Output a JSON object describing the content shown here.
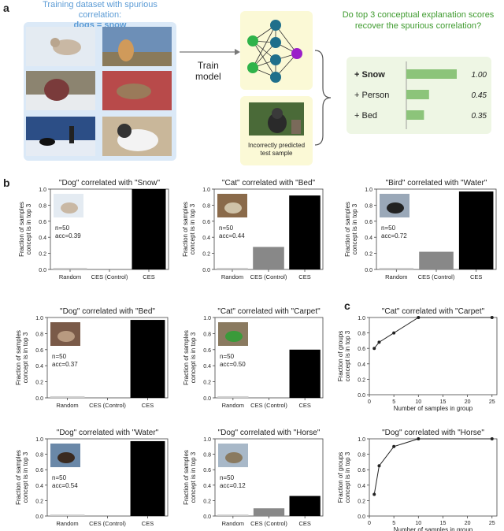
{
  "panel_a": {
    "letter": "a",
    "dataset_title": "Training dataset with spurious correlation:",
    "dataset_highlight": "dogs = snow",
    "train_label_line1": "Train",
    "train_label_line2": "model",
    "test_caption_line1": "Incorrectly predicted",
    "test_caption_line2": "test sample",
    "question_line1": "Do top 3 conceptual explanation scores",
    "question_line2": "recover the spurious correlation?",
    "scores": [
      {
        "label": "+ Snow",
        "value": 1.0,
        "text": "1.00",
        "bold": true
      },
      {
        "label": "+ Person",
        "value": 0.45,
        "text": "0.45",
        "bold": false
      },
      {
        "label": "+ Bed",
        "value": 0.35,
        "text": "0.35",
        "bold": false
      }
    ],
    "colors": {
      "dataset_bg": "#dbe9f7",
      "dataset_title": "#5b9bd5",
      "green_bg": "#eef6e4",
      "bar": "#8cc47a",
      "question": "#3f9b2f",
      "node_teal": "#1f6f8b",
      "node_green": "#2fb34a",
      "node_purple": "#9b1fc9"
    }
  },
  "panel_b": {
    "letter": "b"
  },
  "panel_c": {
    "letter": "c"
  },
  "chart_data": [
    {
      "type": "bar",
      "panel": "b",
      "title": "\"Dog\" correlated with \"Snow\"",
      "categories": [
        "Random",
        "CES (Control)",
        "CES"
      ],
      "values": [
        0.02,
        0.0,
        1.0
      ],
      "ylim": [
        0,
        1
      ],
      "yticks": [
        "0.0",
        "0.2",
        "0.4",
        "0.6",
        "0.8",
        "1.0"
      ],
      "ylabel": "Fraction of samples concept is in top 3",
      "n": "n=50",
      "acc": "acc=0.39",
      "show_ylabel": true
    },
    {
      "type": "bar",
      "panel": "b",
      "title": "\"Cat\" correlated with \"Bed\"",
      "categories": [
        "Random",
        "CES (Control)",
        "CES"
      ],
      "values": [
        0.02,
        0.28,
        0.92
      ],
      "ylim": [
        0,
        1
      ],
      "yticks": [
        "0.0",
        "0.2",
        "0.4",
        "0.6",
        "0.8",
        "1.0"
      ],
      "ylabel": "Fraction of samples concept is in top 3",
      "n": "n=50",
      "acc": "acc=0.44",
      "show_ylabel": true
    },
    {
      "type": "bar",
      "panel": "b",
      "title": "\"Bird\" correlated with \"Water\"",
      "categories": [
        "Random",
        "CES (Control)",
        "CES"
      ],
      "values": [
        0.02,
        0.22,
        0.97
      ],
      "ylim": [
        0,
        1
      ],
      "yticks": [
        "0.0",
        "0.2",
        "0.4",
        "0.6",
        "0.8",
        "1.0"
      ],
      "ylabel": "Fraction of samples concept is in top 3",
      "n": "n=50",
      "acc": "acc=0.72",
      "show_ylabel": true
    },
    {
      "type": "bar",
      "panel": "b",
      "title": "\"Dog\" correlated with \"Bed\"",
      "categories": [
        "Random",
        "CES (Control)",
        "CES"
      ],
      "values": [
        0.02,
        0.0,
        0.97
      ],
      "ylim": [
        0,
        1
      ],
      "yticks": [
        "0.0",
        "0.2",
        "0.4",
        "0.6",
        "0.8",
        "1.0"
      ],
      "ylabel": "Fraction of samples concept is in top 3",
      "n": "n=50",
      "acc": "acc=0.37",
      "show_ylabel": true
    },
    {
      "type": "bar",
      "panel": "b",
      "title": "\"Cat\" correlated with \"Carpet\"",
      "categories": [
        "Random",
        "CES (Control)",
        "CES"
      ],
      "values": [
        0.02,
        0.0,
        0.6
      ],
      "ylim": [
        0,
        1
      ],
      "yticks": [
        "0.0",
        "0.2",
        "0.4",
        "0.6",
        "0.8",
        "1.0"
      ],
      "ylabel": "Fraction of samples concept is in top 3",
      "n": "n=50",
      "acc": "acc=0.50",
      "show_ylabel": true
    },
    {
      "type": "line",
      "panel": "c",
      "title": "\"Cat\" correlated with \"Carpet\"",
      "x": [
        1,
        2,
        5,
        10,
        25
      ],
      "y": [
        0.6,
        0.68,
        0.8,
        1.0,
        1.0
      ],
      "xlim": [
        0,
        26
      ],
      "ylim": [
        0,
        1
      ],
      "xticks": [
        0,
        5,
        10,
        15,
        20,
        25
      ],
      "yticks": [
        "0.0",
        "0.2",
        "0.4",
        "0.6",
        "0.8",
        "1.0"
      ],
      "xlabel": "Number of samples in group",
      "ylabel": "Fraction of groups concept is in top 3"
    },
    {
      "type": "bar",
      "panel": "b",
      "title": "\"Dog\" correlated with \"Water\"",
      "categories": [
        "Random",
        "CES (Control)",
        "CES"
      ],
      "values": [
        0.02,
        0.0,
        0.97
      ],
      "ylim": [
        0,
        1
      ],
      "yticks": [
        "0.0",
        "0.2",
        "0.4",
        "0.6",
        "0.8",
        "1.0"
      ],
      "ylabel": "Fraction of samples concept is in top 3",
      "n": "n=50",
      "acc": "acc=0.54",
      "show_ylabel": true
    },
    {
      "type": "bar",
      "panel": "b",
      "title": "\"Dog\" correlated with \"Horse\"",
      "categories": [
        "Random",
        "CES (Control)",
        "CES"
      ],
      "values": [
        0.02,
        0.1,
        0.26
      ],
      "ylim": [
        0,
        1
      ],
      "yticks": [
        "0.0",
        "0.2",
        "0.4",
        "0.6",
        "0.8",
        "1.0"
      ],
      "ylabel": "Fraction of samples concept is in top 3",
      "n": "n=50",
      "acc": "acc=0.12",
      "show_ylabel": true
    },
    {
      "type": "line",
      "panel": "c",
      "title": "\"Dog\" correlated with \"Horse\"",
      "x": [
        1,
        2,
        5,
        10,
        25
      ],
      "y": [
        0.28,
        0.65,
        0.9,
        1.0,
        1.0
      ],
      "xlim": [
        0,
        26
      ],
      "ylim": [
        0,
        1
      ],
      "xticks": [
        0,
        5,
        10,
        15,
        20,
        25
      ],
      "yticks": [
        "0.0",
        "0.2",
        "0.4",
        "0.6",
        "0.8",
        "1.0"
      ],
      "xlabel": "Number of samples in group",
      "ylabel": "Fraction of groups concept is in top 3"
    }
  ]
}
